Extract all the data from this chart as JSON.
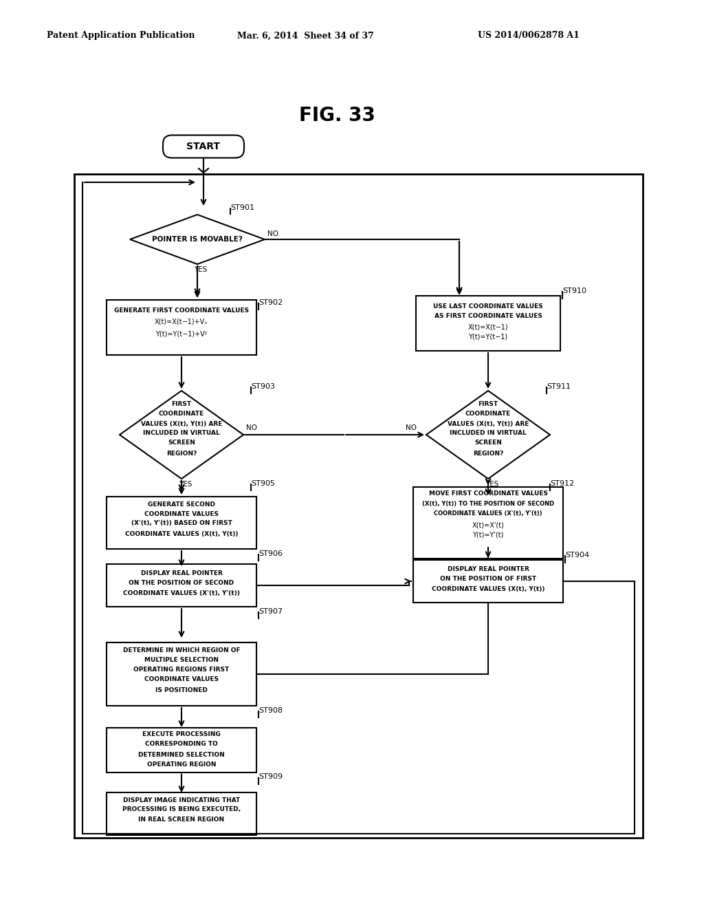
{
  "header_left": "Patent Application Publication",
  "header_mid": "Mar. 6, 2014  Sheet 34 of 37",
  "header_right": "US 2014/0062878 A1",
  "title": "FIG. 33",
  "bg": "#ffffff"
}
